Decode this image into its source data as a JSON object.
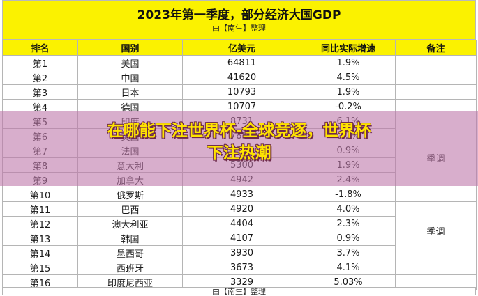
{
  "header": {
    "title": "2023年第一季度，部分经济大国GDP",
    "subtitle": "由【南生】整理"
  },
  "table": {
    "columns": [
      "排名",
      "国别",
      "亿美元",
      "同比实际增速",
      "备注"
    ],
    "rows": [
      {
        "rank": "第1",
        "country": "美国",
        "gdp": "64811",
        "growth": "1.9%",
        "note": ""
      },
      {
        "rank": "第2",
        "country": "中国",
        "gdp": "41620",
        "growth": "4.5%",
        "note": ""
      },
      {
        "rank": "第3",
        "country": "日本",
        "gdp": "10793",
        "growth": "1.9%",
        "note": ""
      },
      {
        "rank": "第4",
        "country": "德国",
        "gdp": "10707",
        "growth": "-0.2%",
        "note": ""
      },
      {
        "rank": "第5",
        "country": "印度",
        "gdp": "8731",
        "growth": "6.1%",
        "note": ""
      },
      {
        "rank": "第6",
        "country": "英国",
        "gdp": "7850",
        "growth": "0.2%",
        "note": ""
      },
      {
        "rank": "第7",
        "country": "法国",
        "gdp": "7364",
        "growth": "0.9%",
        "note": "季调"
      },
      {
        "rank": "第8",
        "country": "意大利",
        "gdp": "5300",
        "growth": "1.9%",
        "note": ""
      },
      {
        "rank": "第9",
        "country": "加拿大",
        "gdp": "4942",
        "growth": "2.4%",
        "note": ""
      },
      {
        "rank": "第10",
        "country": "俄罗斯",
        "gdp": "4933",
        "growth": "-1.8%",
        "note": ""
      },
      {
        "rank": "第11",
        "country": "巴西",
        "gdp": "4920",
        "growth": "4.0%",
        "note": ""
      },
      {
        "rank": "第12",
        "country": "澳大利亚",
        "gdp": "4404",
        "growth": "2.3%",
        "note": "季调"
      },
      {
        "rank": "第13",
        "country": "韩国",
        "gdp": "4107",
        "growth": "0.9%",
        "note": ""
      },
      {
        "rank": "第14",
        "country": "墨西哥",
        "gdp": "3930",
        "growth": "3.7%",
        "note": ""
      },
      {
        "rank": "第15",
        "country": "西班牙",
        "gdp": "3673",
        "growth": "4.1%",
        "note": ""
      },
      {
        "rank": "第16",
        "country": "印度尼西亚",
        "gdp": "3329",
        "growth": "5.03%",
        "note": ""
      }
    ],
    "footer": "由【南生】整理"
  },
  "overlay": {
    "line1": "在哪能下注世界杯-全球竞逐，世界杯",
    "line2": "下注热潮"
  },
  "colors": {
    "header_band": "#fbf200",
    "negative": "#e10000",
    "overlay_text": "#ffe400"
  }
}
